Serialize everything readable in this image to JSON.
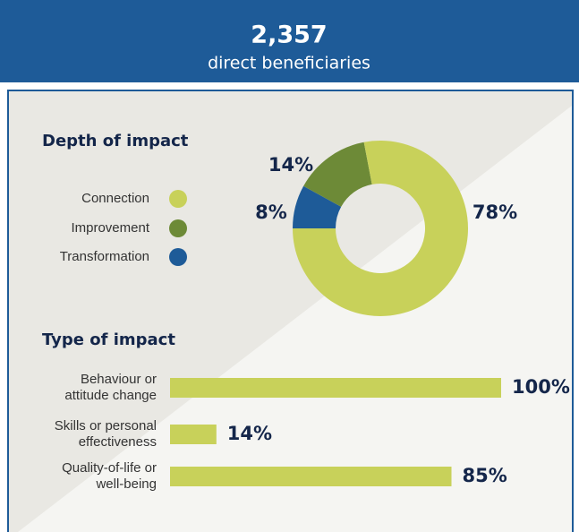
{
  "header": {
    "number": "2,357",
    "caption": "direct beneficiaries"
  },
  "chart_data": [
    {
      "type": "donut",
      "title": "Depth of impact",
      "categories": [
        "Connection",
        "Improvement",
        "Transformation"
      ],
      "values": [
        78,
        14,
        8
      ],
      "value_labels": [
        "78%",
        "14%",
        "8%"
      ],
      "colors": [
        "#c8d15a",
        "#6d8a37",
        "#1e5b98"
      ]
    },
    {
      "type": "hbar",
      "title": "Type of impact",
      "categories": [
        [
          "Behaviour or",
          "attitude change"
        ],
        [
          "Skills or personal",
          "effectiveness"
        ],
        [
          "Quality-of-life or",
          "well-being"
        ]
      ],
      "values": [
        100,
        14,
        85
      ],
      "value_labels": [
        "100%",
        "14%",
        "85%"
      ],
      "color": "#c8d15a",
      "xlim": [
        0,
        100
      ]
    }
  ]
}
